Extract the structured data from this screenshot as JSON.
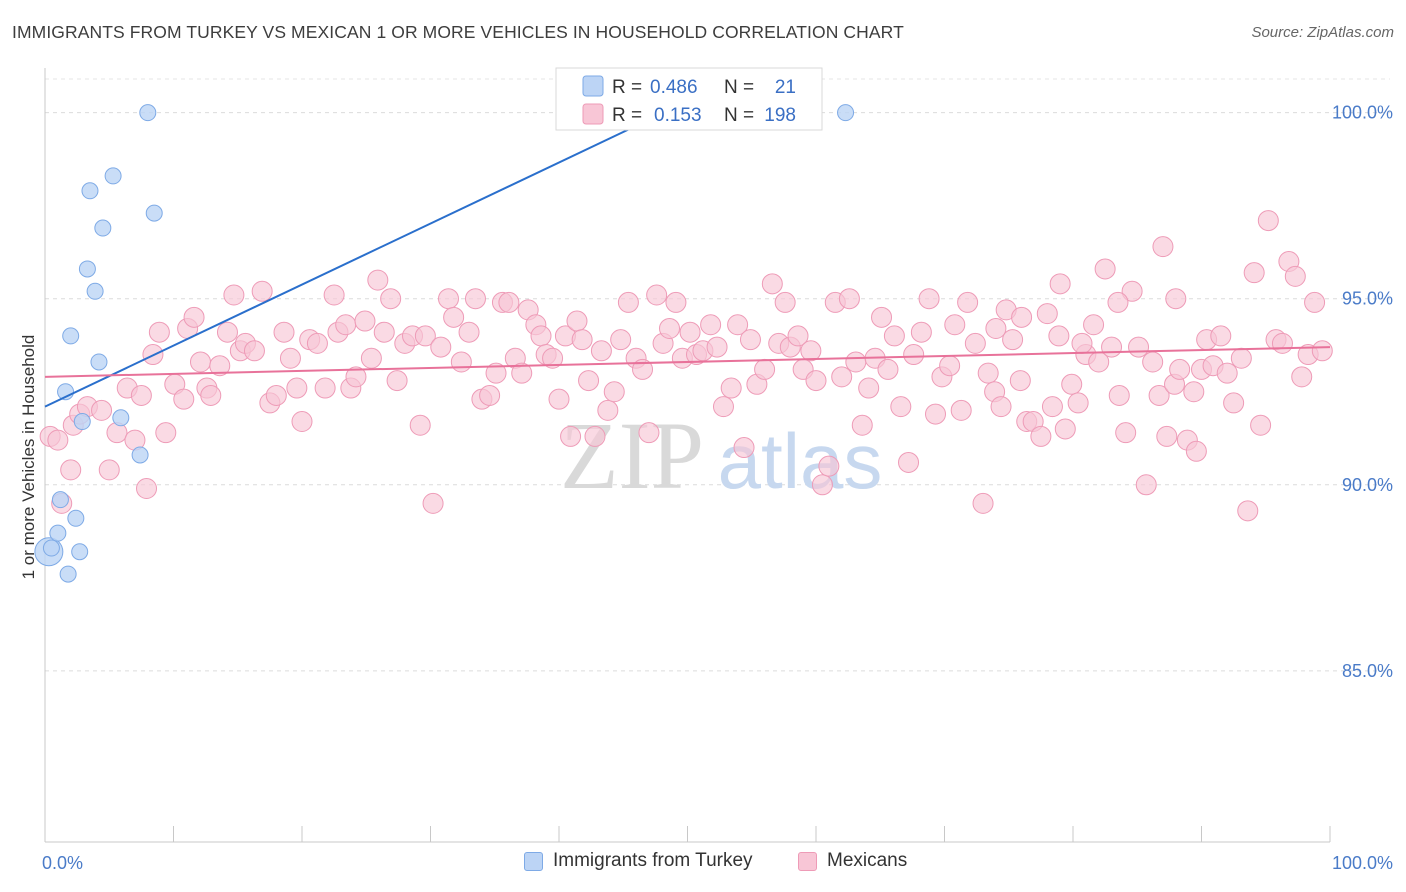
{
  "header": {
    "title": "IMMIGRANTS FROM TURKEY VS MEXICAN 1 OR MORE VEHICLES IN HOUSEHOLD CORRELATION CHART",
    "source": "Source: ZipAtlas.com"
  },
  "watermark": {
    "zip": "ZIP",
    "atlas": "atlas"
  },
  "legend": {
    "r_label": "R =",
    "n_label": "N =",
    "rows": [
      {
        "r": "0.486",
        "n": "21"
      },
      {
        "r": "0.153",
        "n": "198"
      }
    ]
  },
  "bottom_legend": {
    "items": [
      {
        "label": "Immigrants from Turkey"
      },
      {
        "label": "Mexicans"
      }
    ]
  },
  "chart_data": {
    "type": "scatter",
    "ylabel": "1 or more Vehicles in Household",
    "xlim": [
      0,
      100
    ],
    "ylim": [
      80.4,
      101.2
    ],
    "x_tick_labels": [
      "0.0%",
      "100.0%"
    ],
    "y_ticks": [
      100,
      95,
      90,
      85
    ],
    "y_tick_labels": [
      "100.0%",
      "95.0%",
      "90.0%",
      "85.0%"
    ],
    "grid": true,
    "colors": {
      "turkey_fill": "#bcd4f5",
      "turkey_stroke": "#7eaae6",
      "turkey_line": "#2a6fcc",
      "mex_fill": "#f8c6d6",
      "mex_stroke": "#ee9bb7",
      "mex_line": "#e8729a"
    },
    "series": [
      {
        "name": "Immigrants from Turkey",
        "trend": [
          [
            0.0,
            92.1
          ],
          [
            50.0,
            100.3
          ]
        ],
        "points": [
          [
            0.3,
            88.2
          ],
          [
            0.5,
            88.3
          ],
          [
            1.0,
            88.7
          ],
          [
            1.2,
            89.6
          ],
          [
            1.6,
            92.5
          ],
          [
            1.8,
            87.6
          ],
          [
            2.0,
            94.0
          ],
          [
            2.4,
            89.1
          ],
          [
            2.7,
            88.2
          ],
          [
            2.9,
            91.7
          ],
          [
            3.3,
            95.8
          ],
          [
            3.5,
            97.9
          ],
          [
            3.9,
            95.2
          ],
          [
            4.2,
            93.3
          ],
          [
            4.5,
            96.9
          ],
          [
            5.3,
            98.3
          ],
          [
            5.9,
            91.8
          ],
          [
            7.4,
            90.8
          ],
          [
            8.0,
            100.0
          ],
          [
            8.5,
            97.3
          ],
          [
            62.3,
            100.0
          ]
        ]
      },
      {
        "name": "Mexicans",
        "trend": [
          [
            0.0,
            92.9
          ],
          [
            100.0,
            93.7
          ]
        ],
        "points": [
          [
            0.4,
            91.3
          ],
          [
            1.0,
            91.2
          ],
          [
            1.3,
            89.5
          ],
          [
            2.0,
            90.4
          ],
          [
            2.2,
            91.6
          ],
          [
            2.7,
            91.9
          ],
          [
            3.3,
            92.1
          ],
          [
            4.4,
            92.0
          ],
          [
            5.0,
            90.4
          ],
          [
            5.6,
            91.4
          ],
          [
            6.4,
            92.6
          ],
          [
            7.0,
            91.2
          ],
          [
            7.5,
            92.4
          ],
          [
            7.9,
            89.9
          ],
          [
            8.4,
            93.5
          ],
          [
            8.9,
            94.1
          ],
          [
            9.4,
            91.4
          ],
          [
            10.1,
            92.7
          ],
          [
            10.8,
            92.3
          ],
          [
            11.1,
            94.2
          ],
          [
            11.6,
            94.5
          ],
          [
            12.1,
            93.3
          ],
          [
            12.6,
            92.6
          ],
          [
            12.9,
            92.4
          ],
          [
            13.6,
            93.2
          ],
          [
            14.2,
            94.1
          ],
          [
            14.7,
            95.1
          ],
          [
            15.2,
            93.6
          ],
          [
            15.6,
            93.8
          ],
          [
            16.3,
            93.6
          ],
          [
            16.9,
            95.2
          ],
          [
            17.5,
            92.2
          ],
          [
            18.0,
            92.4
          ],
          [
            18.6,
            94.1
          ],
          [
            19.1,
            93.4
          ],
          [
            19.6,
            92.6
          ],
          [
            20.0,
            91.7
          ],
          [
            20.6,
            93.9
          ],
          [
            21.2,
            93.8
          ],
          [
            21.8,
            92.6
          ],
          [
            22.5,
            95.1
          ],
          [
            22.8,
            94.1
          ],
          [
            23.4,
            94.3
          ],
          [
            23.8,
            92.6
          ],
          [
            24.2,
            92.9
          ],
          [
            24.9,
            94.4
          ],
          [
            25.4,
            93.4
          ],
          [
            25.9,
            95.5
          ],
          [
            26.4,
            94.1
          ],
          [
            26.9,
            95.0
          ],
          [
            27.4,
            92.8
          ],
          [
            28.0,
            93.8
          ],
          [
            28.6,
            94.0
          ],
          [
            29.2,
            91.6
          ],
          [
            29.6,
            94.0
          ],
          [
            30.2,
            89.5
          ],
          [
            30.8,
            93.7
          ],
          [
            31.4,
            95.0
          ],
          [
            31.8,
            94.5
          ],
          [
            32.4,
            93.3
          ],
          [
            33.0,
            94.1
          ],
          [
            33.5,
            95.0
          ],
          [
            34.0,
            92.3
          ],
          [
            34.6,
            92.4
          ],
          [
            35.1,
            93.0
          ],
          [
            35.6,
            94.9
          ],
          [
            36.1,
            94.9
          ],
          [
            36.6,
            93.4
          ],
          [
            37.1,
            93.0
          ],
          [
            37.6,
            94.7
          ],
          [
            38.2,
            94.3
          ],
          [
            38.6,
            94.0
          ],
          [
            39.0,
            93.5
          ],
          [
            39.5,
            93.4
          ],
          [
            40.0,
            92.3
          ],
          [
            40.5,
            94.0
          ],
          [
            40.9,
            91.3
          ],
          [
            41.4,
            94.4
          ],
          [
            41.8,
            93.9
          ],
          [
            42.3,
            92.8
          ],
          [
            42.8,
            91.3
          ],
          [
            43.3,
            93.6
          ],
          [
            43.8,
            92.0
          ],
          [
            44.3,
            92.5
          ],
          [
            44.8,
            93.9
          ],
          [
            45.4,
            94.9
          ],
          [
            46.0,
            93.4
          ],
          [
            46.5,
            93.1
          ],
          [
            47.0,
            91.4
          ],
          [
            47.6,
            95.1
          ],
          [
            48.1,
            93.8
          ],
          [
            48.6,
            94.2
          ],
          [
            49.1,
            94.9
          ],
          [
            49.6,
            93.4
          ],
          [
            50.2,
            94.1
          ],
          [
            50.7,
            93.5
          ],
          [
            51.2,
            93.6
          ],
          [
            51.8,
            94.3
          ],
          [
            52.3,
            93.7
          ],
          [
            52.8,
            92.1
          ],
          [
            53.4,
            92.6
          ],
          [
            53.9,
            94.3
          ],
          [
            54.4,
            91.0
          ],
          [
            54.9,
            93.9
          ],
          [
            55.4,
            92.7
          ],
          [
            56.0,
            93.1
          ],
          [
            56.6,
            95.4
          ],
          [
            57.1,
            93.8
          ],
          [
            57.6,
            94.9
          ],
          [
            58.0,
            93.7
          ],
          [
            58.6,
            94.0
          ],
          [
            59.0,
            93.1
          ],
          [
            59.6,
            93.6
          ],
          [
            60.0,
            92.8
          ],
          [
            60.5,
            90.0
          ],
          [
            61.0,
            90.5
          ],
          [
            61.5,
            94.9
          ],
          [
            62.0,
            92.9
          ],
          [
            62.6,
            95.0
          ],
          [
            63.1,
            93.3
          ],
          [
            63.6,
            91.6
          ],
          [
            64.1,
            92.6
          ],
          [
            64.6,
            93.4
          ],
          [
            65.1,
            94.5
          ],
          [
            65.6,
            93.1
          ],
          [
            66.1,
            94.0
          ],
          [
            66.6,
            92.1
          ],
          [
            67.2,
            90.6
          ],
          [
            67.6,
            93.5
          ],
          [
            68.2,
            94.1
          ],
          [
            68.8,
            95.0
          ],
          [
            69.3,
            91.9
          ],
          [
            69.8,
            92.9
          ],
          [
            70.4,
            93.2
          ],
          [
            70.8,
            94.3
          ],
          [
            71.3,
            92.0
          ],
          [
            71.8,
            94.9
          ],
          [
            72.4,
            93.8
          ],
          [
            73.0,
            89.5
          ],
          [
            73.4,
            93.0
          ],
          [
            73.9,
            92.5
          ],
          [
            74.4,
            92.1
          ],
          [
            74.8,
            94.7
          ],
          [
            75.3,
            93.9
          ],
          [
            75.9,
            92.8
          ],
          [
            76.4,
            91.7
          ],
          [
            76.9,
            91.7
          ],
          [
            77.5,
            91.3
          ],
          [
            78.0,
            94.6
          ],
          [
            78.4,
            92.1
          ],
          [
            78.9,
            94.0
          ],
          [
            79.4,
            91.5
          ],
          [
            79.9,
            92.7
          ],
          [
            80.4,
            92.2
          ],
          [
            81.0,
            93.5
          ],
          [
            81.6,
            94.3
          ],
          [
            82.0,
            93.3
          ],
          [
            82.5,
            95.8
          ],
          [
            83.0,
            93.7
          ],
          [
            83.6,
            92.4
          ],
          [
            84.1,
            91.4
          ],
          [
            84.6,
            95.2
          ],
          [
            85.1,
            93.7
          ],
          [
            85.7,
            90.0
          ],
          [
            86.2,
            93.3
          ],
          [
            86.7,
            92.4
          ],
          [
            87.3,
            91.3
          ],
          [
            87.9,
            92.7
          ],
          [
            88.3,
            93.1
          ],
          [
            88.9,
            91.2
          ],
          [
            89.4,
            92.5
          ],
          [
            90.0,
            93.1
          ],
          [
            90.4,
            93.9
          ],
          [
            90.9,
            93.2
          ],
          [
            91.5,
            94.0
          ],
          [
            92.0,
            93.0
          ],
          [
            92.5,
            92.2
          ],
          [
            93.1,
            93.4
          ],
          [
            93.6,
            89.3
          ],
          [
            94.1,
            95.7
          ],
          [
            94.6,
            91.6
          ],
          [
            95.2,
            97.1
          ],
          [
            95.8,
            93.9
          ],
          [
            96.3,
            93.8
          ],
          [
            96.8,
            96.0
          ],
          [
            97.3,
            95.6
          ],
          [
            97.8,
            92.9
          ],
          [
            98.3,
            93.5
          ],
          [
            98.8,
            94.9
          ],
          [
            99.4,
            93.6
          ],
          [
            87.0,
            96.4
          ],
          [
            79.0,
            95.4
          ],
          [
            83.5,
            94.9
          ],
          [
            88.0,
            95.0
          ],
          [
            76.0,
            94.5
          ],
          [
            80.7,
            93.8
          ],
          [
            74.0,
            94.2
          ],
          [
            89.6,
            90.9
          ]
        ]
      }
    ]
  }
}
